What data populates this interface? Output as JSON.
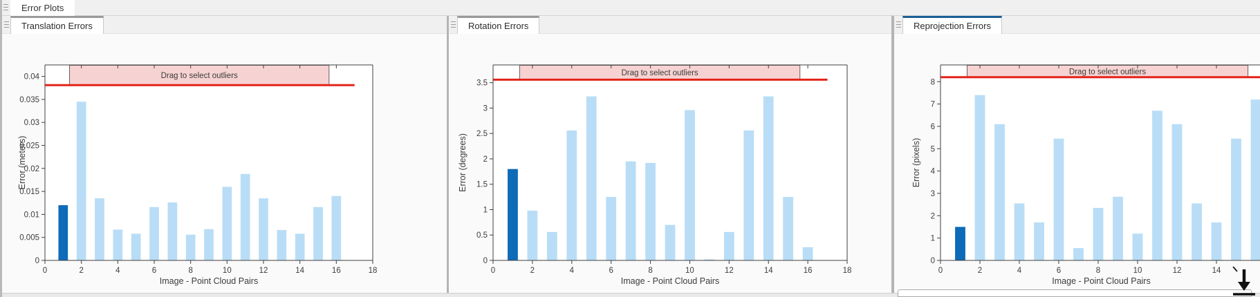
{
  "window": {
    "top_tab": "Error Plots"
  },
  "colors": {
    "bar_highlight": "#0d6bb8",
    "bar_light": "#b9ddf6",
    "red_line": "#e3231a",
    "drag_box_fill": "#f6d3d2",
    "drag_box_border": "#6e5b5b",
    "axis": "#3f3f3f",
    "text": "#3c3c3c",
    "tab_accent_default": "#9a9a9a",
    "tab_accent_selected": "#1b5e97"
  },
  "panels": [
    {
      "tab": "Translation Errors",
      "accent": "#9a9a9a"
    },
    {
      "tab": "Rotation Errors",
      "accent": "#9a9a9a"
    },
    {
      "tab": "Reprojection Errors",
      "accent": "#1b5e97"
    }
  ],
  "cursor_icon": "down-arrow-cursor",
  "chart_data": [
    {
      "type": "bar",
      "title": "Translation Errors",
      "xlabel": "Image - Point Cloud Pairs",
      "ylabel": "Error (meters)",
      "categories": [
        1,
        2,
        3,
        4,
        5,
        6,
        7,
        8,
        9,
        10,
        11,
        12,
        13,
        14,
        15,
        16
      ],
      "values": [
        0.012,
        0.0345,
        0.0135,
        0.0067,
        0.0058,
        0.0116,
        0.0126,
        0.0056,
        0.0068,
        0.016,
        0.0188,
        0.0135,
        0.0066,
        0.0058,
        0.0116,
        0.014
      ],
      "highlight_index": 0,
      "threshold_line": {
        "value": 0.0381,
        "x_span": [
          0,
          17
        ]
      },
      "drag_region": {
        "label": "Drag to select outliers",
        "x_span": [
          1.35,
          15.6
        ]
      },
      "axes": {
        "xlim": [
          0,
          18
        ],
        "ylim_visible": [
          0,
          0.0425
        ],
        "xticks": [
          0,
          2,
          4,
          6,
          8,
          10,
          12,
          14,
          16,
          18
        ],
        "yticks": [
          0,
          0.005,
          0.01,
          0.015,
          0.02,
          0.025,
          0.03,
          0.035,
          0.04
        ],
        "ytick_labels": [
          "0",
          "0.005",
          "0.01",
          "0.015",
          "0.02",
          "0.025",
          "0.03",
          "0.035",
          "0.04"
        ],
        "grid": false,
        "legend": false
      }
    },
    {
      "type": "bar",
      "title": "Rotation Errors",
      "xlabel": "Image - Point Cloud Pairs",
      "ylabel": "Error (degrees)",
      "categories": [
        1,
        2,
        3,
        4,
        5,
        6,
        7,
        8,
        9,
        10,
        11,
        12,
        13,
        14,
        15,
        16
      ],
      "values": [
        1.8,
        0.98,
        0.56,
        2.56,
        3.23,
        1.25,
        1.95,
        1.92,
        0.7,
        2.96,
        0.02,
        0.56,
        2.56,
        3.23,
        1.25,
        0.26
      ],
      "highlight_index": 0,
      "threshold_line": {
        "value": 3.56,
        "x_span": [
          0,
          17
        ]
      },
      "drag_region": {
        "label": "Drag to select outliers",
        "x_span": [
          1.35,
          15.6
        ]
      },
      "axes": {
        "xlim": [
          0,
          18
        ],
        "ylim_visible": [
          0,
          3.85
        ],
        "xticks": [
          0,
          2,
          4,
          6,
          8,
          10,
          12,
          14,
          16,
          18
        ],
        "yticks": [
          0,
          0.5,
          1,
          1.5,
          2,
          2.5,
          3,
          3.5
        ],
        "ytick_labels": [
          "0",
          "0.5",
          "1",
          "1.5",
          "2",
          "2.5",
          "3",
          "3.5"
        ],
        "grid": false,
        "legend": false
      }
    },
    {
      "type": "bar",
      "title": "Reprojection Errors",
      "xlabel": "Image - Point Cloud Pairs",
      "ylabel": "Error (pixels)",
      "categories": [
        1,
        2,
        3,
        4,
        5,
        6,
        7,
        8,
        9,
        10,
        11,
        12,
        13,
        14,
        15,
        16
      ],
      "values": [
        1.5,
        7.4,
        6.1,
        2.55,
        1.7,
        5.45,
        0.55,
        2.35,
        2.85,
        1.2,
        6.7,
        6.1,
        2.55,
        1.7,
        5.45,
        7.2
      ],
      "highlight_index": 0,
      "threshold_line": {
        "value": 8.2,
        "x_span": [
          0,
          17
        ]
      },
      "drag_region": {
        "label": "Drag to select outliers",
        "x_span": [
          1.35,
          15.6
        ]
      },
      "axes": {
        "xlim": [
          0,
          18
        ],
        "ylim_visible": [
          0,
          8.75
        ],
        "xticks": [
          0,
          2,
          4,
          6,
          8,
          10,
          12,
          14
        ],
        "yticks": [
          0,
          1,
          2,
          3,
          4,
          5,
          6,
          7,
          8
        ],
        "ytick_labels": [
          "0",
          "1",
          "2",
          "3",
          "4",
          "5",
          "6",
          "7",
          "8"
        ],
        "grid": false,
        "legend": false,
        "clipped_right": true
      }
    }
  ]
}
